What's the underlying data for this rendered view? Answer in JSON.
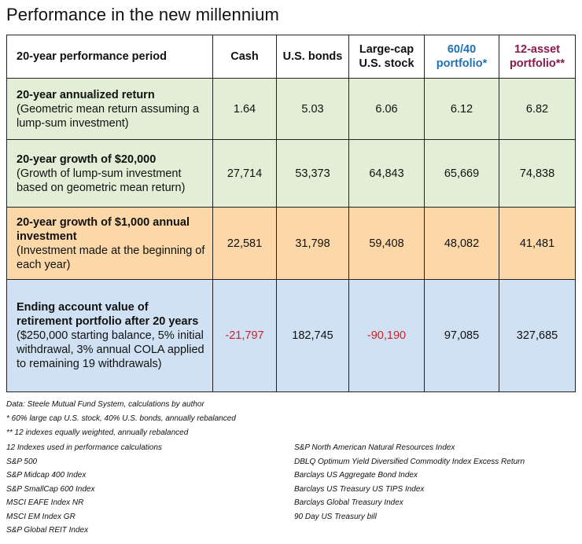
{
  "title": "Performance in the new millennium",
  "chart_data": {
    "type": "table",
    "columns": [
      "20-year performance period",
      "Cash",
      "U.S. bonds",
      "Large-cap U.S. stock",
      "60/40 portfolio*",
      "12-asset portfolio**"
    ],
    "header": {
      "period": "20-year performance period",
      "cash": "Cash",
      "bonds": "U.S. bonds",
      "stock_line1": "Large-cap",
      "stock_line2": "U.S. stock",
      "p6040_line1": "60/40",
      "p6040_line2": "portfolio*",
      "p12_line1": "12-asset",
      "p12_line2": "portfolio**"
    },
    "rows": [
      {
        "label_bold": "20-year annualized return",
        "label_rest": "(Geometric mean return assuming a lump-sum investment)",
        "values": [
          "1.64",
          "5.03",
          "6.06",
          "6.12",
          "6.82"
        ]
      },
      {
        "label_bold": "20-year growth of $20,000",
        "label_rest": "(Growth of lump-sum investment based on geometric mean return)",
        "values": [
          "27,714",
          "53,373",
          "64,843",
          "65,669",
          "74,838"
        ]
      },
      {
        "label_bold": "20-year growth of $1,000 annual investment",
        "label_rest": "(Investment made at the beginning of each year)",
        "values": [
          "22,581",
          "31,798",
          "59,408",
          "48,082",
          "41,481"
        ]
      },
      {
        "label_bold": "Ending account value of retirement portfolio after 20 years",
        "label_rest": "($250,000 starting balance, 5% initial withdrawal, 3% annual COLA applied to remaining 19 withdrawals)",
        "values": [
          "-21,797",
          "182,745",
          "-90,190",
          "97,085",
          "327,685"
        ]
      }
    ],
    "colors": {
      "row_green": "#e2efd6",
      "row_orange": "#fcd7a7",
      "row_blue": "#cfe1f3",
      "negative": "#d62027",
      "col_6040": "#2271b5",
      "col_12asset": "#8a1a4a"
    }
  },
  "notes": {
    "data": "Data:  Steele Mutual Fund System, calculations by author",
    "fn1": "* 60% large cap U.S. stock, 40% U.S. bonds, annually rebalanced",
    "fn2": "** 12 indexes equally weighted, annually rebalanced"
  },
  "indexes_left": [
    "12 Indexes used in performance calculations",
    "S&P 500",
    "S&P Midcap 400 Index",
    "S&P SmallCap 600 Index",
    "MSCI EAFE Index NR",
    "MSCI EM Index GR",
    "S&P Global REIT Index"
  ],
  "indexes_right": [
    "S&P North American Natural Resources Index",
    "DBLQ Optimum Yield Diversified Commodity Index Excess Return",
    "Barclays US Aggregate Bond Index",
    "Barclays US Treasury US TIPS Index",
    "Barclays Global Treasury Index",
    "90 Day US Treasury bill"
  ]
}
